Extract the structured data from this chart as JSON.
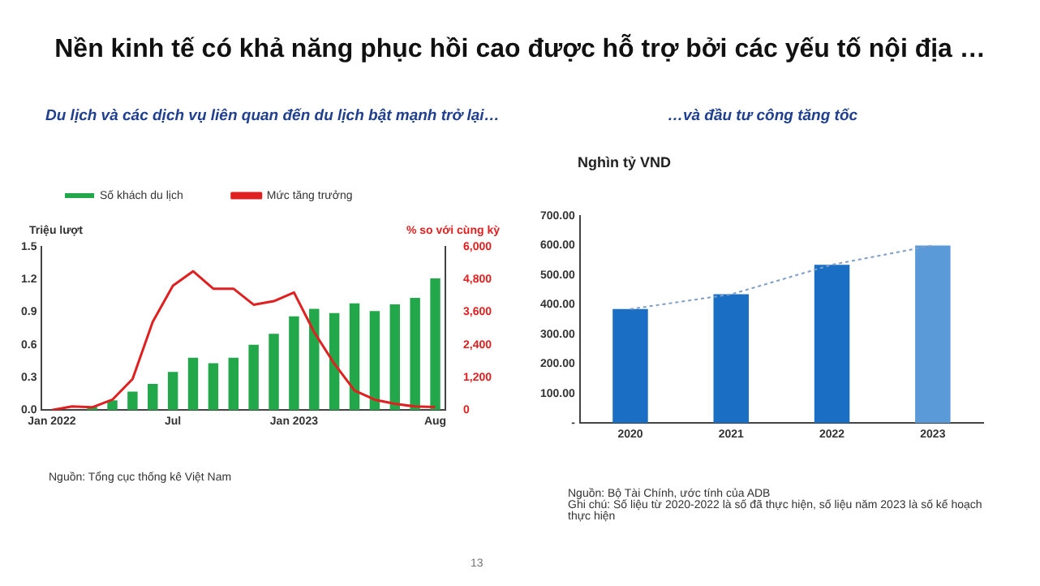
{
  "chart_data": [
    {
      "type": "bar",
      "title": "Nền kinh tế có khả năng phục hồi cao được hỗ trợ bởi các yếu tố nội địa …",
      "subtitle": "Du lịch và các dịch vụ liên quan đến du lịch bật mạnh trở lại…",
      "ylabel": "Triệu lượt",
      "y2label": "% so với cùng kỳ",
      "categories": [
        "Jan 2022",
        null,
        null,
        null,
        null,
        null,
        "Jul",
        null,
        null,
        null,
        null,
        null,
        "Jan 2023",
        null,
        null,
        null,
        null,
        null,
        null,
        "Aug"
      ],
      "series": [
        {
          "name": "Số khách du lịch",
          "color": "#22a84a",
          "values": [
            null,
            null,
            0.03,
            0.09,
            0.17,
            0.24,
            0.35,
            0.48,
            0.43,
            0.48,
            0.6,
            0.7,
            0.86,
            0.93,
            0.89,
            0.98,
            0.91,
            0.97,
            1.03,
            1.21
          ]
        },
        {
          "name": "Mức tăng trưởng",
          "type": "line",
          "axis": "y2",
          "color": "#e02020",
          "values": [
            0,
            130,
            100,
            380,
            1140,
            3240,
            4570,
            5100,
            4460,
            4460,
            3870,
            4000,
            4320,
            2860,
            1700,
            720,
            380,
            230,
            130,
            110
          ]
        }
      ],
      "ylim": [
        0,
        1.5
      ],
      "yticks": [
        {
          "value": 0,
          "label": "0.0"
        },
        {
          "value": 0.3,
          "label": "0.3"
        },
        {
          "value": 0.6,
          "label": "0.6"
        },
        {
          "value": 0.9,
          "label": "0.9"
        },
        {
          "value": 1.2,
          "label": "1.2"
        },
        {
          "value": 1.5,
          "label": "1.5"
        }
      ],
      "y2lim": [
        0,
        6000
      ],
      "y2ticks": [
        0,
        {
          "value": 1200,
          "label": "1,200"
        },
        {
          "value": 2400,
          "label": "2,400"
        },
        {
          "value": 3600,
          "label": "3,600"
        },
        {
          "value": 4800,
          "label": "4,800"
        },
        {
          "value": 6000,
          "label": "6,000"
        }
      ],
      "grid": false,
      "legend": "top",
      "marker": "none",
      "annotations": [
        "Nguồn: Tổng cục thống kê Việt Nam"
      ]
    },
    {
      "type": "bar",
      "subtitle": "…và đầu tư công tăng tốc",
      "ylabel": "Nghìn tỷ VND",
      "categories": [
        "2020",
        "2021",
        "2022",
        "2023"
      ],
      "series": [
        {
          "colors": [
            "#1a6fc4",
            "#1a6fc4",
            "#1a6fc4",
            "#5a9ad8"
          ],
          "values": [
            385,
            435,
            535,
            600
          ]
        },
        {
          "type": "line",
          "color": "#7f9fc8",
          "line_style": "dotted",
          "values": [
            385,
            435,
            535,
            600
          ]
        }
      ],
      "ylim": [
        0,
        700
      ],
      "yticks": [
        {
          "value": 0,
          "label": "-"
        },
        {
          "value": 100,
          "label": "100.00"
        },
        {
          "value": 200,
          "label": "200.00"
        },
        {
          "value": 300,
          "label": "300.00"
        },
        {
          "value": 400,
          "label": "400.00"
        },
        {
          "value": 500,
          "label": "500.00"
        },
        {
          "value": 600,
          "label": "600.00"
        },
        {
          "value": 700,
          "label": "700.00"
        }
      ],
      "grid": false,
      "legend": false,
      "marker": "none",
      "annotations": [
        "Nguồn: Bộ Tài Chính, ước tính của ADB",
        "Ghi chú: Số liệu từ 2020-2022 là số đã thực hiện, số liệu năm 2023 là số kế hoạch thực hiện",
        "13"
      ]
    }
  ]
}
